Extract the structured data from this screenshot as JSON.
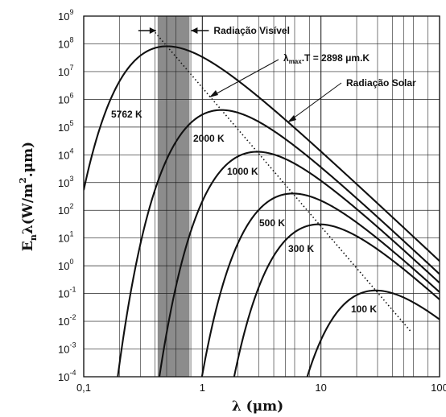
{
  "chart_data": {
    "type": "line",
    "title": "",
    "xlabel": {
      "base": "λ",
      "unit": "(μm)"
    },
    "ylabel": {
      "main": "E",
      "sub": "n",
      "lambda": "λ",
      "unit_open": "(W/m",
      "unit_exp": "2",
      "unit_close": ".μm)"
    },
    "x_scale": "log",
    "y_scale": "log",
    "xlim": [
      0.1,
      100
    ],
    "ylim": [
      0.0001,
      1000000000
    ],
    "grid": true,
    "x_ticks": [
      {
        "value": 0.1,
        "label": "0,1"
      },
      {
        "value": 1,
        "label": "1"
      },
      {
        "value": 10,
        "label": "10"
      },
      {
        "value": 100,
        "label": "100"
      }
    ],
    "y_ticks": [
      {
        "value": 1000000000,
        "base": "10",
        "exp": "9"
      },
      {
        "value": 100000000,
        "base": "10",
        "exp": "8"
      },
      {
        "value": 10000000,
        "base": "10",
        "exp": "7"
      },
      {
        "value": 1000000,
        "base": "10",
        "exp": "6"
      },
      {
        "value": 100000,
        "base": "10",
        "exp": "5"
      },
      {
        "value": 10000,
        "base": "10",
        "exp": "4"
      },
      {
        "value": 1000,
        "base": "10",
        "exp": "3"
      },
      {
        "value": 100,
        "base": "10",
        "exp": "2"
      },
      {
        "value": 10,
        "base": "10",
        "exp": "1"
      },
      {
        "value": 1,
        "base": "10",
        "exp": "0"
      },
      {
        "value": 0.1,
        "base": "10",
        "exp": "-1"
      },
      {
        "value": 0.01,
        "base": "10",
        "exp": "-2"
      },
      {
        "value": 0.001,
        "base": "10",
        "exp": "-3"
      },
      {
        "value": 0.0001,
        "base": "10",
        "exp": "-4"
      }
    ],
    "series": [
      {
        "label": "5762 K",
        "temperature_K": 5762
      },
      {
        "label": "2000 K",
        "temperature_K": 2000
      },
      {
        "label": "1000 K",
        "temperature_K": 1000
      },
      {
        "label": "500 K",
        "temperature_K": 500
      },
      {
        "label": "300 K",
        "temperature_K": 300
      },
      {
        "label": "100 K",
        "temperature_K": 100
      }
    ],
    "wien_line": {
      "label_prefix": "λ",
      "label_sub": "max",
      "label_suffix": ".T = 2898 μm.K",
      "constant_um_K": 2898,
      "x_range": [
        0.4,
        58
      ]
    },
    "visible_band": {
      "label": "Radiação Visível",
      "x_range": [
        0.42,
        0.78
      ],
      "color": "#8c8c8c"
    },
    "annotations": {
      "solar_label": "Radiação Solar"
    },
    "colors": {
      "curve": "#111111",
      "grid": "#222222"
    }
  }
}
